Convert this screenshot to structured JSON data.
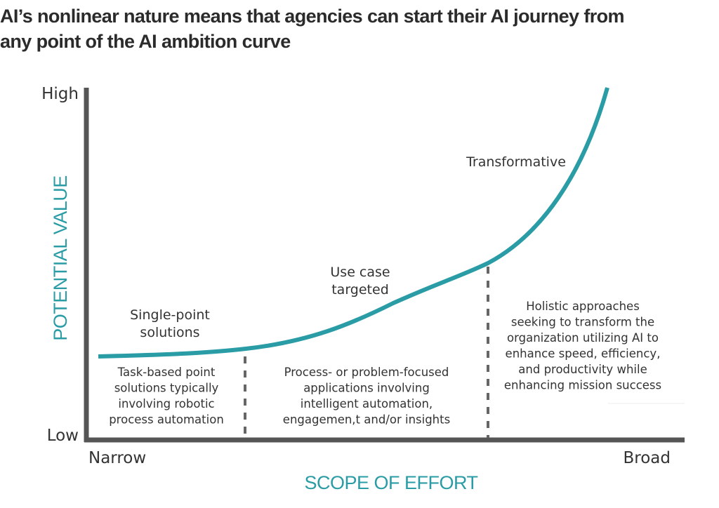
{
  "title": [
    "AI’s nonlinear nature means that agencies can start their AI journey from",
    "any point of the AI ambition curve"
  ],
  "y_axis": {
    "title": "POTENTIAL VALUE",
    "high": "High",
    "low": "Low"
  },
  "x_axis": {
    "title": "SCOPE OF EFFORT",
    "narrow": "Narrow",
    "broad": "Broad"
  },
  "stages": [
    {
      "label": [
        "Single-point",
        "solutions"
      ],
      "description": [
        "Task-based point",
        "solutions typically",
        "involving robotic",
        "process automation"
      ]
    },
    {
      "label": [
        "Use case",
        "targeted"
      ],
      "description": [
        "Process- or problem-focused",
        "applications involving",
        "intelligent automation,",
        "engagemen,t and/or insights"
      ]
    },
    {
      "label": [
        "Transformative"
      ],
      "description": [
        "Holistic approaches",
        "seeking to transform the",
        "organization utilizing AI to",
        "enhance speed, efficiency,",
        "and productivity while",
        "enhancing mission success"
      ]
    }
  ]
}
